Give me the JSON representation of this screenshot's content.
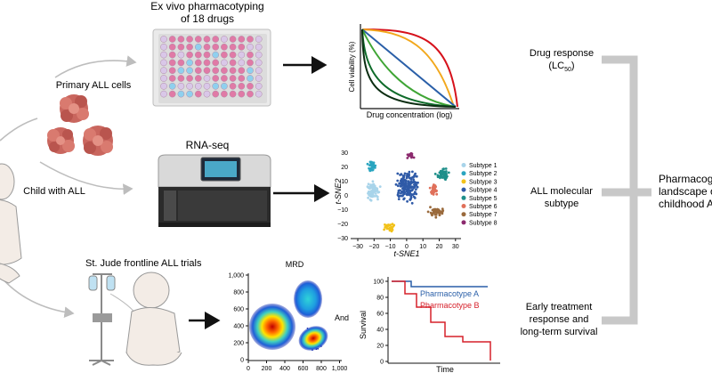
{
  "steps": {
    "pharmacotyping_title_l1": "Ex vivo pharmacotyping",
    "pharmacotyping_title_l2": "of 18 drugs",
    "primary_cells": "Primary ALL cells",
    "child": "Child with ALL",
    "rnaseq": "RNA-seq",
    "trials": "St. Jude frontline ALL trials"
  },
  "viability_plot": {
    "ylabel": "Cell viability (%)",
    "xlabel": "Drug concentration (log)",
    "curve_colors": [
      "#d6111b",
      "#f2a81d",
      "#2a5fa8",
      "#3fa535",
      "#0e6b2a",
      "#0b2d12"
    ]
  },
  "tsne": {
    "xlabel": "t-SNE1",
    "ylabel": "t-SNE2",
    "xticks": [
      "−30",
      "−20",
      "−10",
      "0",
      "10",
      "20",
      "30"
    ],
    "yticks": [
      "30",
      "20",
      "10",
      "0",
      "−10",
      "−20",
      "−30"
    ],
    "legend": [
      {
        "label": "Subtype 1",
        "color": "#a8d4ea"
      },
      {
        "label": "Subtype 2",
        "color": "#2aa5c0"
      },
      {
        "label": "Subtype 3",
        "color": "#f2c21a"
      },
      {
        "label": "Subtype 4",
        "color": "#2f5aa7"
      },
      {
        "label": "Subtype 5",
        "color": "#1e8f8a"
      },
      {
        "label": "Subtype 6",
        "color": "#e0705a"
      },
      {
        "label": "Subtype 7",
        "color": "#9a6a3c"
      },
      {
        "label": "Subtype 8",
        "color": "#8c2a6e"
      }
    ]
  },
  "mrd": {
    "title": "MRD",
    "yticks": [
      "1,000",
      "800",
      "600",
      "400",
      "200",
      "0"
    ],
    "xticks": [
      "0",
      "200",
      "400",
      "600",
      "800",
      "1,000"
    ]
  },
  "and_label": "And",
  "survival": {
    "ylabel": "Survival",
    "xlabel": "Time",
    "yticks": [
      "100",
      "80",
      "60",
      "40",
      "20",
      "0"
    ],
    "series": [
      {
        "label": "Pharmacotype A",
        "color": "#2a5fa8"
      },
      {
        "label": "Pharmacotype B",
        "color": "#d6202a"
      }
    ]
  },
  "outcomes": {
    "drug_response_l1": "Drug response",
    "drug_response_l2": "(LC",
    "drug_response_sub": "50",
    "drug_response_close": ")",
    "subtype_l1": "ALL molecular",
    "subtype_l2": "subtype",
    "early_l1": "Early treatment",
    "early_l2": "response and",
    "early_l3": "long-term survival"
  },
  "landscape": {
    "l1": "Pharmacog",
    "l2": "landscape o",
    "l3": "childhood A"
  }
}
